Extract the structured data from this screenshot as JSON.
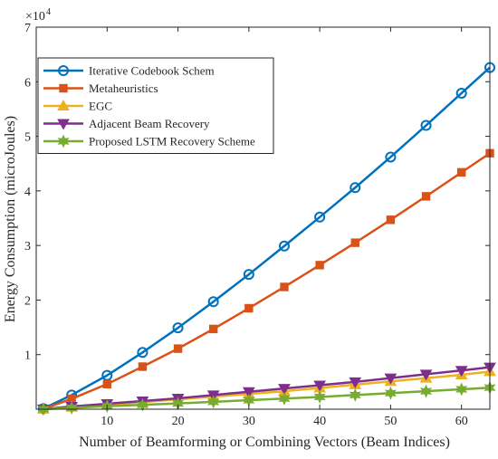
{
  "chart_data": {
    "type": "line",
    "title": "",
    "xlabel": "Number of Beamforming or Combining Vectors (Beam Indices)",
    "ylabel": "Energy Consumption (microJoules)",
    "y_exponent_label": "×10",
    "y_exponent_power": "4",
    "xlim": [
      0,
      64
    ],
    "ylim": [
      0,
      70000
    ],
    "xticks": [
      10,
      20,
      30,
      40,
      50,
      60
    ],
    "yticks": [
      1,
      2,
      3,
      4,
      5,
      6,
      7
    ],
    "ytick_scale": 10000,
    "grid": false,
    "legend_position": "top-left",
    "x": [
      1,
      5,
      10,
      15,
      20,
      25,
      30,
      35,
      40,
      45,
      50,
      55,
      60,
      64
    ],
    "series": [
      {
        "name": "Iterative Codebook Schem",
        "color": "#0072BD",
        "marker": "circle",
        "values": [
          100,
          2600,
          6200,
          10400,
          14900,
          19700,
          24700,
          29900,
          35200,
          40600,
          46200,
          52000,
          57900,
          62600
        ]
      },
      {
        "name": "Metaheuristics",
        "color": "#D95319",
        "marker": "square",
        "values": [
          80,
          1900,
          4600,
          7800,
          11100,
          14700,
          18500,
          22400,
          26400,
          30500,
          34700,
          39000,
          43400,
          46900
        ]
      },
      {
        "name": "EGC",
        "color": "#EDB120",
        "marker": "triangle-up",
        "values": [
          20,
          400,
          800,
          1300,
          1800,
          2300,
          2800,
          3300,
          3900,
          4500,
          5100,
          5700,
          6300,
          6900
        ]
      },
      {
        "name": "Adjacent Beam Recovery",
        "color": "#7E2F8E",
        "marker": "triangle-down",
        "values": [
          30,
          500,
          1000,
          1500,
          2000,
          2600,
          3200,
          3800,
          4400,
          5000,
          5700,
          6400,
          7100,
          7700
        ]
      },
      {
        "name": "Proposed LSTM Recovery Scheme",
        "color": "#77AC30",
        "marker": "hexagram",
        "values": [
          10,
          250,
          550,
          800,
          1050,
          1350,
          1650,
          1950,
          2250,
          2600,
          2950,
          3300,
          3650,
          3950
        ]
      }
    ]
  }
}
